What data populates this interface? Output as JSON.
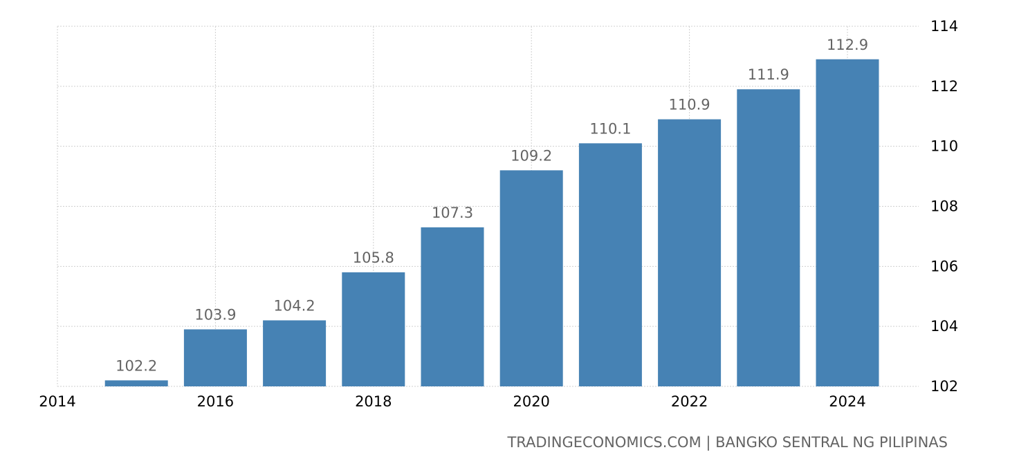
{
  "chart_data": {
    "type": "bar",
    "categories": [
      "2015",
      "2016",
      "2017",
      "2018",
      "2019",
      "2020",
      "2021",
      "2022",
      "2023",
      "2024"
    ],
    "values": [
      102.2,
      103.9,
      104.2,
      105.8,
      107.3,
      109.2,
      110.1,
      110.9,
      111.9,
      112.9
    ],
    "data_labels": [
      "102.2",
      "103.9",
      "104.2",
      "105.8",
      "107.3",
      "109.2",
      "110.1",
      "110.9",
      "111.9",
      "112.9"
    ],
    "x_ticks": [
      "2014",
      "2016",
      "2018",
      "2020",
      "2022",
      "2024"
    ],
    "y_ticks": [
      "102",
      "104",
      "106",
      "108",
      "110",
      "112",
      "114"
    ],
    "ylim": [
      102,
      114
    ],
    "xlim": [
      2014,
      2024.5
    ],
    "y_axis_position": "right",
    "grid": true,
    "bar_color": "#4682b4",
    "title": "",
    "xlabel": "",
    "ylabel": ""
  },
  "footer": {
    "source_text": "TRADINGECONOMICS.COM | BANGKO SENTRAL NG PILIPINAS"
  }
}
